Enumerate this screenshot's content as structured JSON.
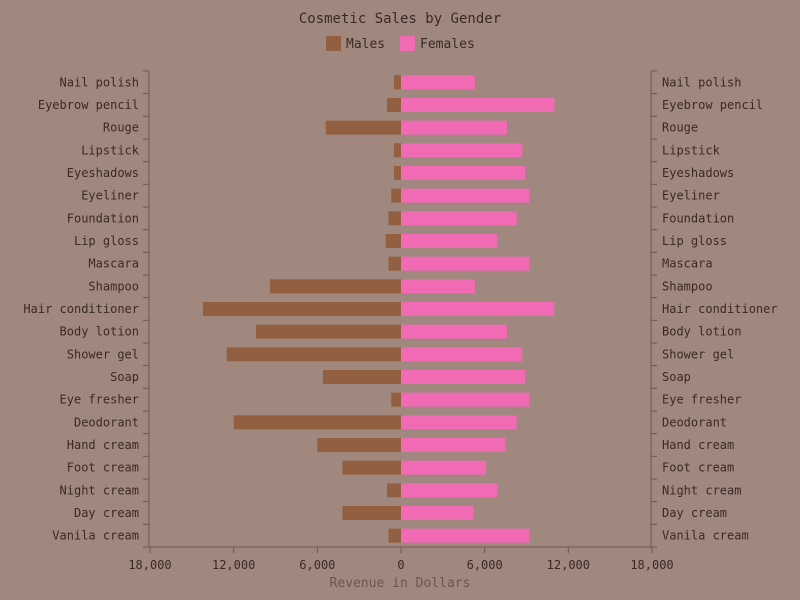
{
  "chart_data": {
    "type": "bar",
    "orientation": "horizontal-diverging",
    "title": "Cosmetic Sales by Gender",
    "xlabel": "Revenue in Dollars",
    "ylabel": "",
    "categories": [
      "Nail polish",
      "Eyebrow pencil",
      "Rouge",
      "Lipstick",
      "Eyeshadows",
      "Eyeliner",
      "Foundation",
      "Lip gloss",
      "Mascara",
      "Shampoo",
      "Hair conditioner",
      "Body lotion",
      "Shower gel",
      "Soap",
      "Eye fresher",
      "Deodorant",
      "Hand cream",
      "Foot cream",
      "Night cream",
      "Day cream",
      "Vanila cream"
    ],
    "series": [
      {
        "name": "Males",
        "color": "#935f41",
        "values": [
          500,
          1000,
          5400,
          500,
          500,
          700,
          900,
          1100,
          900,
          9400,
          14200,
          10400,
          12500,
          5600,
          700,
          12000,
          6000,
          4200,
          1000,
          4200,
          900
        ]
      },
      {
        "name": "Females",
        "color": "#f06ab4",
        "values": [
          5300,
          11000,
          7600,
          8700,
          8900,
          9200,
          8300,
          6900,
          9200,
          5300,
          11000,
          7600,
          8700,
          8900,
          9200,
          8300,
          7500,
          6100,
          6900,
          5200,
          9200
        ]
      }
    ],
    "xlim": [
      -18000,
      18000
    ],
    "xticks": [
      -18000,
      -12000,
      -6000,
      0,
      6000,
      12000,
      18000
    ],
    "xtick_labels": [
      "18,000",
      "12,000",
      "6,000",
      "0",
      "6,000",
      "12,000",
      "18,000"
    ],
    "legend_position": "top-center",
    "grid": false
  }
}
